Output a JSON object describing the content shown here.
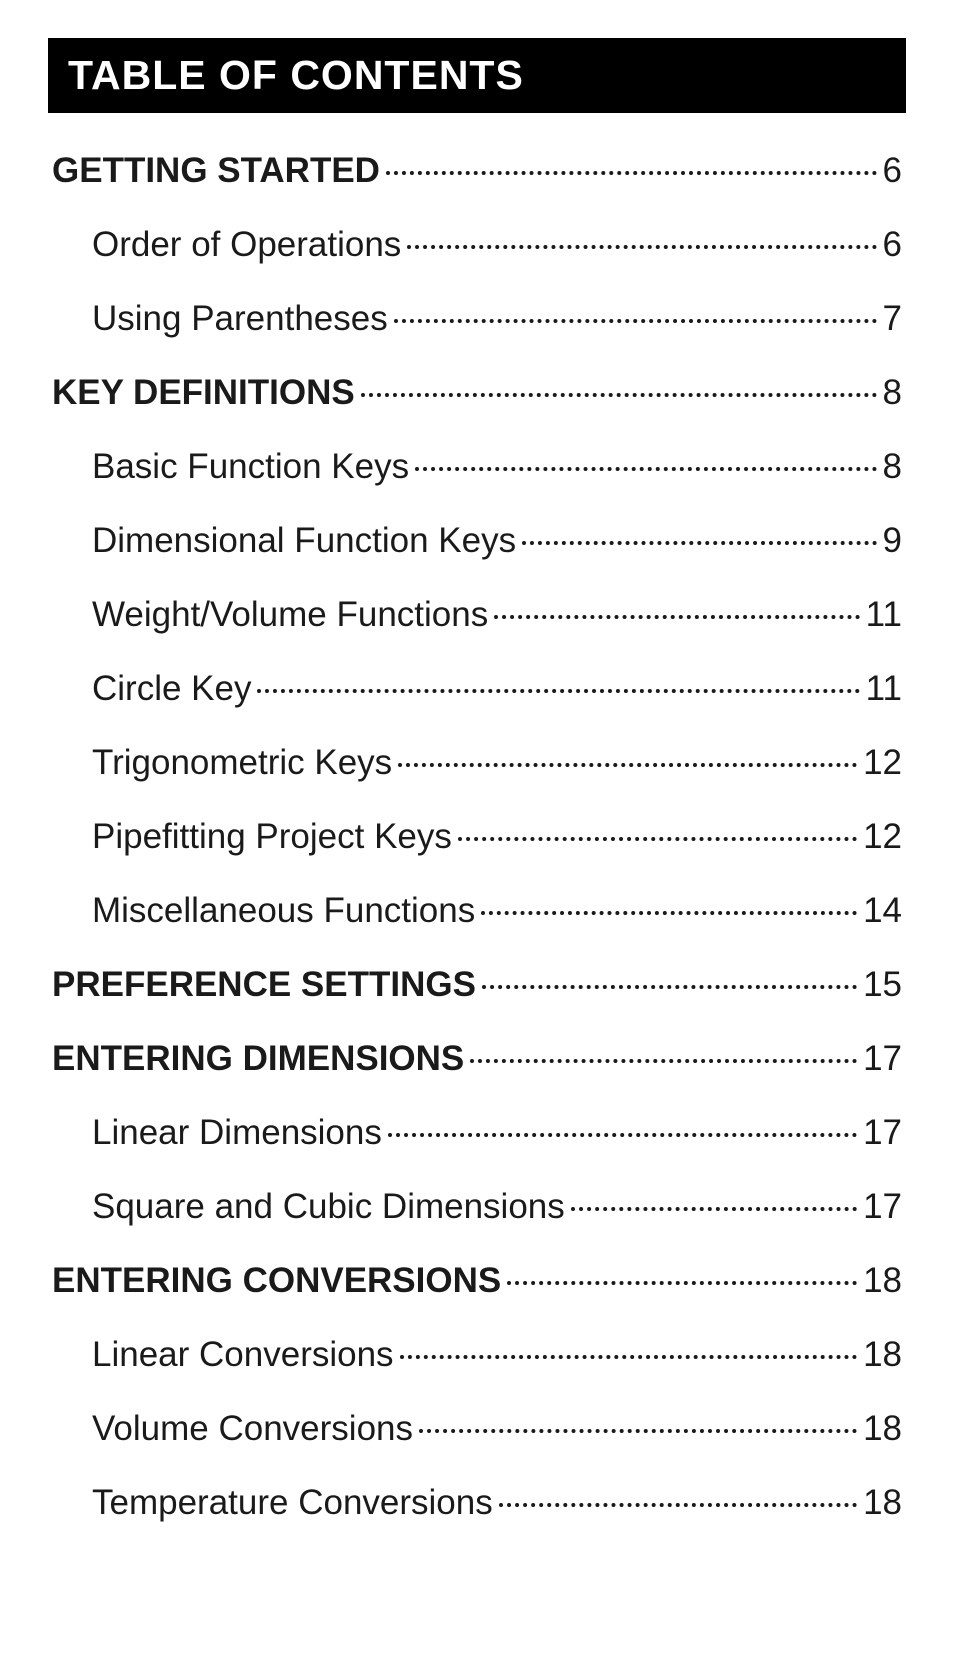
{
  "header": "TABLE OF CONTENTS",
  "entries": [
    {
      "label": "GETTING STARTED",
      "page": "6",
      "level": "section"
    },
    {
      "label": "Order of Operations",
      "page": "6",
      "level": "sub"
    },
    {
      "label": "Using Parentheses",
      "page": "7",
      "level": "sub"
    },
    {
      "label": "KEY DEFINITIONS",
      "page": "8",
      "level": "section"
    },
    {
      "label": "Basic Function Keys",
      "page": "8",
      "level": "sub"
    },
    {
      "label": "Dimensional Function Keys",
      "page": "9",
      "level": "sub"
    },
    {
      "label": "Weight/Volume Functions",
      "page": "11",
      "level": "sub"
    },
    {
      "label": "Circle Key",
      "page": "11",
      "level": "sub"
    },
    {
      "label": "Trigonometric Keys",
      "page": "12",
      "level": "sub"
    },
    {
      "label": "Pipefitting Project Keys",
      "page": "12",
      "level": "sub"
    },
    {
      "label": "Miscellaneous Functions",
      "page": "14",
      "level": "sub"
    },
    {
      "label": "PREFERENCE SETTINGS",
      "page": "15",
      "level": "section"
    },
    {
      "label": "ENTERING DIMENSIONS",
      "page": "17",
      "level": "section"
    },
    {
      "label": "Linear Dimensions",
      "page": "17",
      "level": "sub"
    },
    {
      "label": "Square and Cubic Dimensions",
      "page": "17",
      "level": "sub"
    },
    {
      "label": "ENTERING CONVERSIONS",
      "page": "18",
      "level": "section"
    },
    {
      "label": "Linear Conversions",
      "page": "18",
      "level": "sub"
    },
    {
      "label": "Volume Conversions",
      "page": "18",
      "level": "sub"
    },
    {
      "label": "Temperature Conversions",
      "page": "18",
      "level": "sub"
    }
  ]
}
